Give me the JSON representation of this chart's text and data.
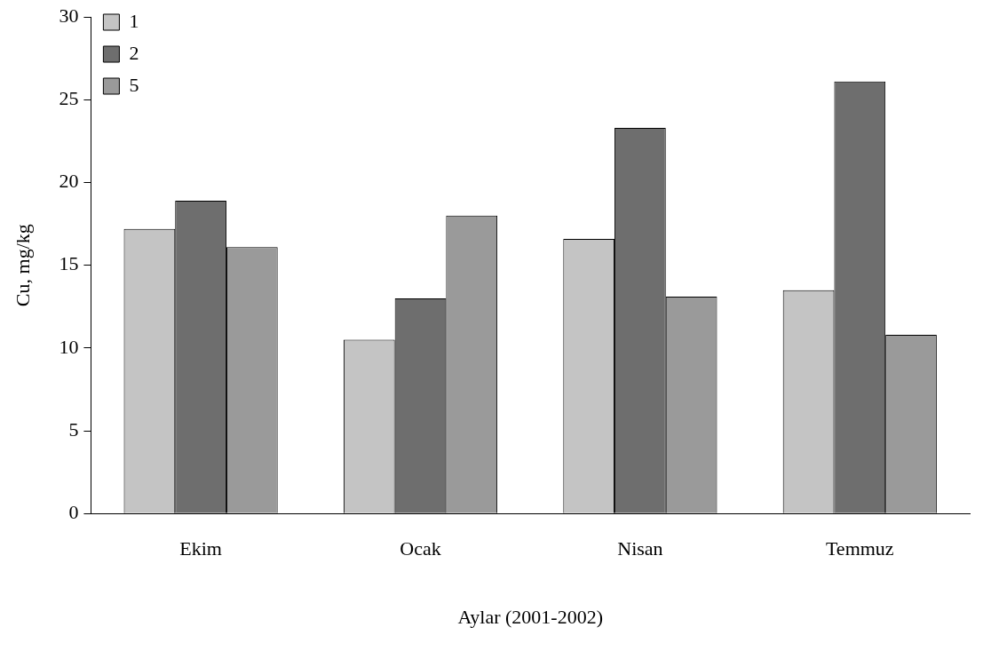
{
  "chart_data": {
    "type": "bar",
    "xlabel": "Aylar (2001-2002)",
    "ylabel": "Cu, mg/kg",
    "categories": [
      "Ekim",
      "Ocak",
      "Nisan",
      "Temmuz"
    ],
    "series": [
      {
        "name": "1",
        "color": "#c4c4c4",
        "values": [
          17.2,
          10.5,
          16.6,
          13.5
        ]
      },
      {
        "name": "2",
        "color": "#6e6e6e",
        "values": [
          18.9,
          13.0,
          23.3,
          26.1
        ]
      },
      {
        "name": "5",
        "color": "#9a9a9a",
        "values": [
          16.1,
          18.0,
          13.1,
          10.8
        ]
      }
    ],
    "ylim": [
      0,
      30
    ],
    "yticks": [
      0,
      5,
      10,
      15,
      20,
      25,
      30
    ],
    "grid": false,
    "legend": "top left"
  }
}
